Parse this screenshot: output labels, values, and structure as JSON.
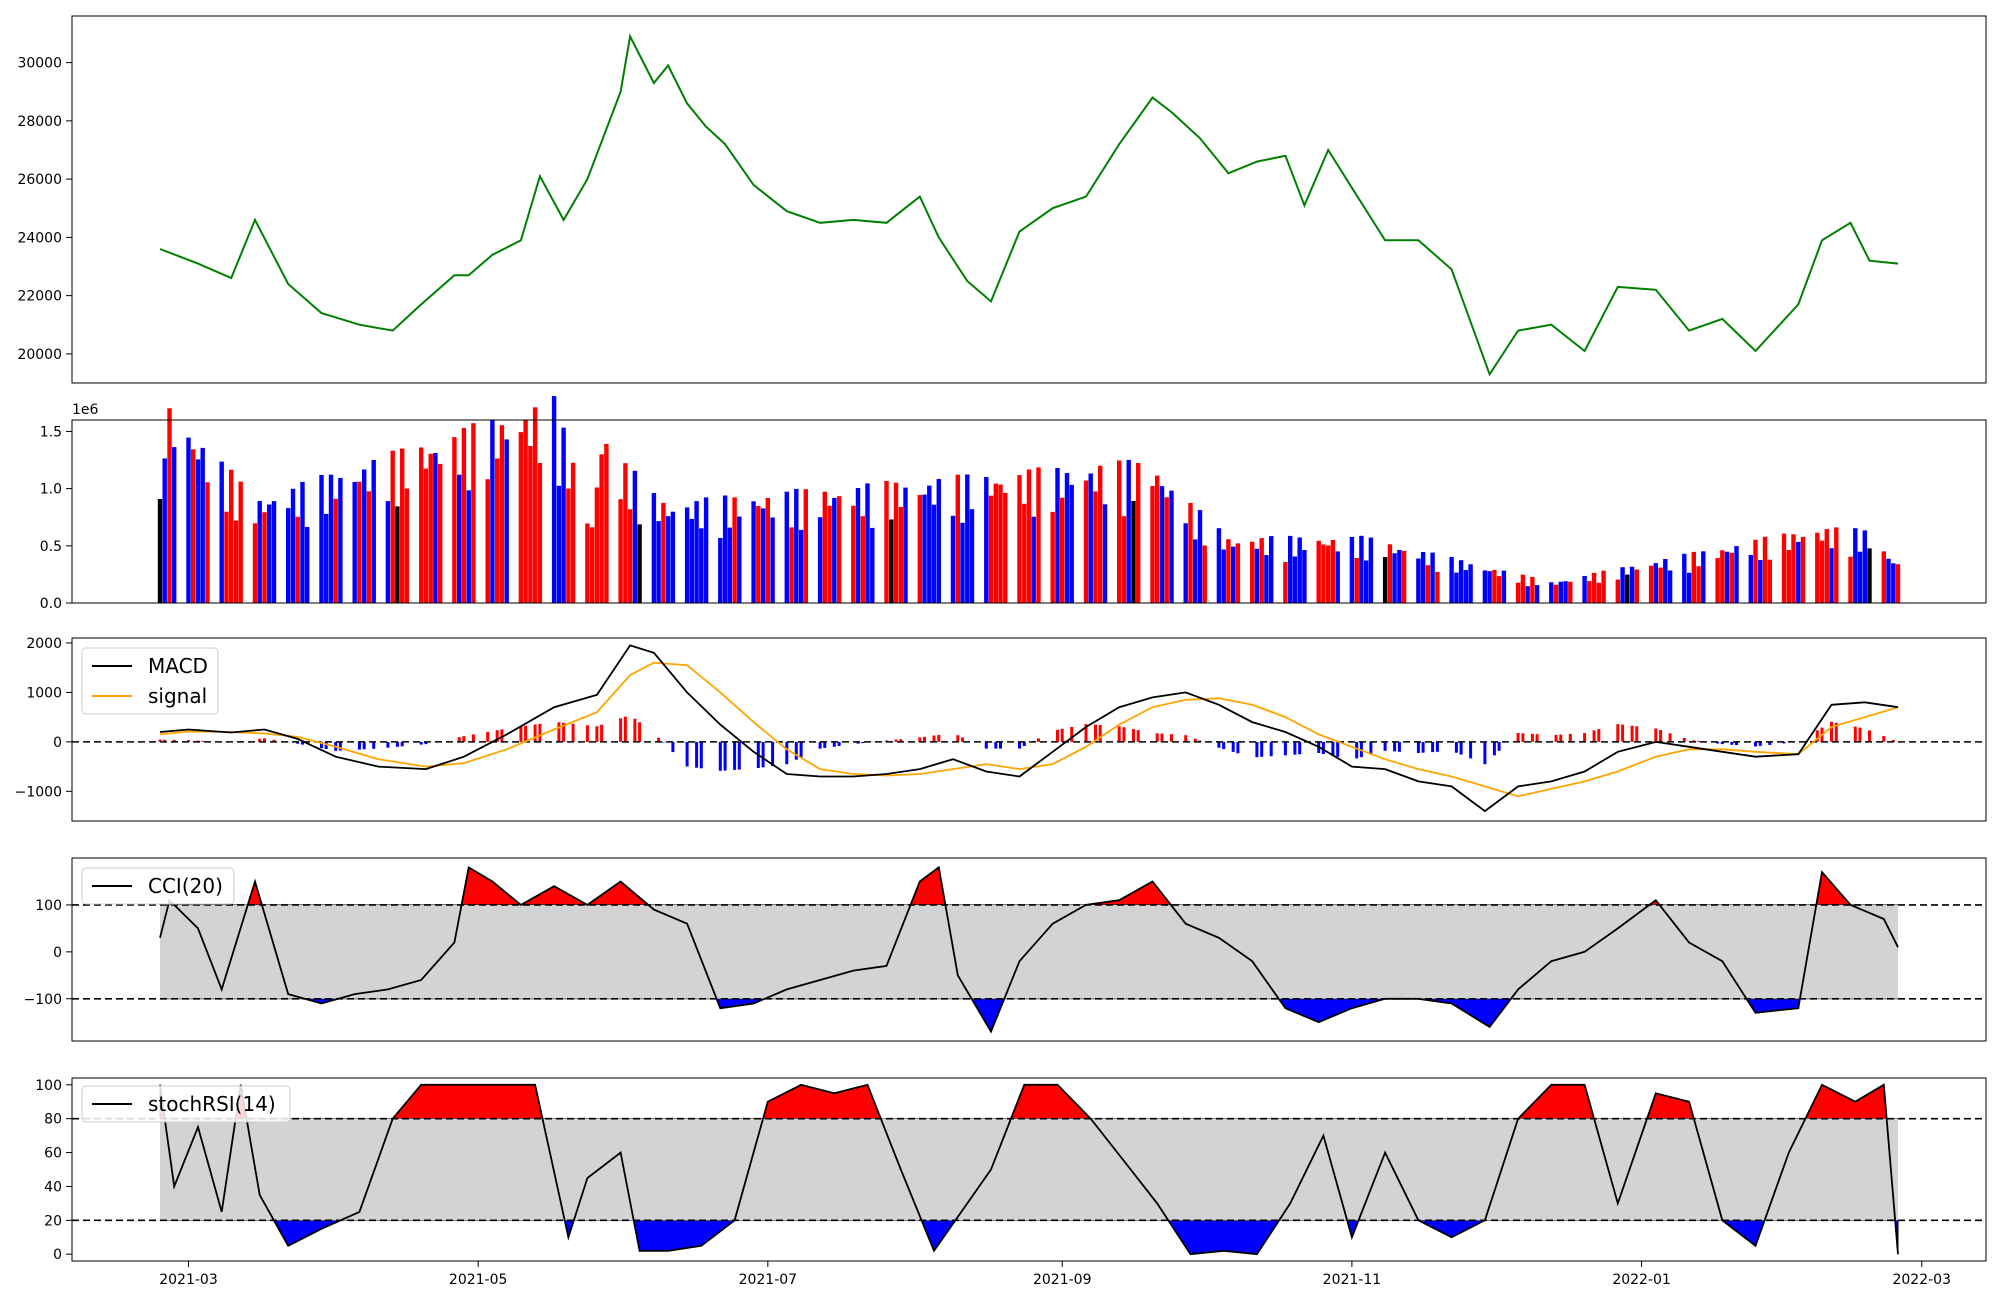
{
  "colors": {
    "price": "#008000",
    "up": "#ff0000",
    "down": "#0000ff",
    "flat": "#000000",
    "macd": "#000000",
    "signal": "#ffa500",
    "band": "#d3d3d3",
    "over": "#ff0000",
    "under": "#0000ff"
  },
  "chart_data": [
    {
      "type": "line",
      "panel": "price",
      "ylim": [
        19000,
        31600
      ],
      "yticks": [
        "20000",
        "22000",
        "24000",
        "26000",
        "28000",
        "30000"
      ],
      "series": [
        {
          "x": [
            "2021-02-23",
            "2021-03-03",
            "2021-03-10",
            "2021-03-15",
            "2021-03-22",
            "2021-03-29",
            "2021-04-06",
            "2021-04-13",
            "2021-04-19",
            "2021-04-26",
            "2021-04-29",
            "2021-05-04",
            "2021-05-10",
            "2021-05-14",
            "2021-05-19",
            "2021-05-24",
            "2021-05-31",
            "2021-06-02",
            "2021-06-07",
            "2021-06-10",
            "2021-06-14",
            "2021-06-18",
            "2021-06-22",
            "2021-06-28",
            "2021-07-05",
            "2021-07-12",
            "2021-07-19",
            "2021-07-26",
            "2021-08-02",
            "2021-08-06",
            "2021-08-12",
            "2021-08-17",
            "2021-08-23",
            "2021-08-30",
            "2021-09-06",
            "2021-09-13",
            "2021-09-20",
            "2021-09-24",
            "2021-09-30",
            "2021-10-06",
            "2021-10-12",
            "2021-10-18",
            "2021-10-22",
            "2021-10-27",
            "2021-11-01",
            "2021-11-08",
            "2021-11-15",
            "2021-11-22",
            "2021-11-30",
            "2021-12-06",
            "2021-12-13",
            "2021-12-20",
            "2021-12-27",
            "2022-01-04",
            "2022-01-11",
            "2022-01-18",
            "2022-01-25",
            "2022-02-03",
            "2022-02-08",
            "2022-02-14",
            "2022-02-18",
            "2022-02-24"
          ],
          "values": [
            23600,
            23100,
            22600,
            24600,
            22400,
            21400,
            21000,
            20800,
            21700,
            22700,
            22700,
            23400,
            23900,
            26100,
            24600,
            26000,
            29000,
            30900,
            29300,
            29900,
            28600,
            27800,
            27200,
            25800,
            24900,
            24500,
            24600,
            24500,
            25400,
            24000,
            22500,
            21800,
            24200,
            25000,
            25400,
            27200,
            28800,
            28300,
            27400,
            26200,
            26600,
            26800,
            25100,
            27000,
            25700,
            23900,
            23900,
            22900,
            19300,
            20800,
            21000,
            20100,
            22300,
            22200,
            20800,
            21200,
            20100,
            21700,
            23900,
            24500,
            23200,
            23100
          ]
        }
      ]
    },
    {
      "type": "bar",
      "panel": "volume",
      "ylim": [
        0,
        1600000
      ],
      "yticks": [
        "0.0",
        "0.5",
        "1.0",
        "1.5"
      ],
      "offset_label": "1e6",
      "series": [
        {
          "x": [
            "2021-02-23",
            "2021-02-24",
            "2021-03-15",
            "2021-03-16",
            "2021-05-17",
            "2021-05-25",
            "2021-05-27",
            "2021-05-31",
            "2021-06-02",
            "2021-06-04",
            "2021-06-10",
            "2021-06-14",
            "2021-09-20",
            "2021-09-24",
            "2021-10-06",
            "2021-11-04",
            "2021-12-13",
            "2022-02-07",
            "2022-02-17",
            "2022-02-24"
          ],
          "values": [
            730000,
            1440000,
            750000,
            750000,
            1450000,
            580000,
            1240000,
            970000,
            1010000,
            840000,
            720000,
            730000,
            1020000,
            830000,
            470000,
            470000,
            150000,
            540000,
            520000,
            290000
          ]
        }
      ]
    },
    {
      "type": "line",
      "panel": "macd",
      "ylim": [
        -1600,
        2100
      ],
      "yticks": [
        "−1000",
        "0",
        "1000",
        "2000"
      ],
      "legend": [
        "MACD",
        "signal"
      ],
      "series": [
        {
          "name": "MACD",
          "x": [
            "2021-02-23",
            "2021-03-01",
            "2021-03-10",
            "2021-03-17",
            "2021-03-24",
            "2021-04-01",
            "2021-04-10",
            "2021-04-20",
            "2021-04-28",
            "2021-05-07",
            "2021-05-17",
            "2021-05-26",
            "2021-06-02",
            "2021-06-07",
            "2021-06-14",
            "2021-06-21",
            "2021-06-28",
            "2021-07-05",
            "2021-07-12",
            "2021-07-19",
            "2021-07-26",
            "2021-08-02",
            "2021-08-09",
            "2021-08-16",
            "2021-08-23",
            "2021-08-30",
            "2021-09-06",
            "2021-09-13",
            "2021-09-20",
            "2021-09-27",
            "2021-10-04",
            "2021-10-11",
            "2021-10-18",
            "2021-10-25",
            "2021-11-01",
            "2021-11-08",
            "2021-11-15",
            "2021-11-22",
            "2021-11-29",
            "2021-12-06",
            "2021-12-13",
            "2021-12-20",
            "2021-12-27",
            "2022-01-04",
            "2022-01-11",
            "2022-01-18",
            "2022-01-25",
            "2022-02-03",
            "2022-02-10",
            "2022-02-17",
            "2022-02-24"
          ],
          "values": [
            200,
            250,
            190,
            250,
            60,
            -300,
            -500,
            -550,
            -300,
            150,
            700,
            950,
            1950,
            1800,
            1000,
            350,
            -200,
            -650,
            -700,
            -700,
            -650,
            -550,
            -350,
            -600,
            -700,
            -200,
            300,
            700,
            900,
            1000,
            750,
            400,
            200,
            -100,
            -500,
            -550,
            -800,
            -900,
            -1400,
            -900,
            -800,
            -600,
            -200,
            0,
            -100,
            -200,
            -300,
            -250,
            750,
            800,
            700
          ]
        },
        {
          "name": "signal",
          "x": [
            "2021-02-23",
            "2021-03-01",
            "2021-03-10",
            "2021-03-17",
            "2021-03-24",
            "2021-04-01",
            "2021-04-10",
            "2021-04-20",
            "2021-04-28",
            "2021-05-07",
            "2021-05-17",
            "2021-05-26",
            "2021-06-02",
            "2021-06-07",
            "2021-06-14",
            "2021-06-21",
            "2021-06-28",
            "2021-07-05",
            "2021-07-12",
            "2021-07-19",
            "2021-07-26",
            "2021-08-02",
            "2021-08-09",
            "2021-08-16",
            "2021-08-23",
            "2021-08-30",
            "2021-09-06",
            "2021-09-13",
            "2021-09-20",
            "2021-09-27",
            "2021-10-04",
            "2021-10-11",
            "2021-10-18",
            "2021-10-25",
            "2021-11-01",
            "2021-11-08",
            "2021-11-15",
            "2021-11-22",
            "2021-11-29",
            "2021-12-06",
            "2021-12-13",
            "2021-12-20",
            "2021-12-27",
            "2022-01-04",
            "2022-01-11",
            "2022-01-18",
            "2022-01-25",
            "2022-02-03",
            "2022-02-10",
            "2022-02-17",
            "2022-02-24"
          ],
          "values": [
            150,
            210,
            200,
            170,
            100,
            -100,
            -350,
            -500,
            -430,
            -150,
            250,
            600,
            1350,
            1600,
            1550,
            1000,
            400,
            -150,
            -550,
            -650,
            -680,
            -650,
            -550,
            -450,
            -550,
            -450,
            -100,
            350,
            700,
            850,
            880,
            750,
            500,
            150,
            -100,
            -350,
            -550,
            -700,
            -900,
            -1100,
            -950,
            -800,
            -600,
            -300,
            -150,
            -150,
            -200,
            -250,
            300,
            500,
            700
          ]
        }
      ]
    },
    {
      "type": "line",
      "panel": "cci",
      "ylim": [
        -190,
        200
      ],
      "yticks": [
        "−100",
        "0",
        "100"
      ],
      "legend": [
        "CCI(20)"
      ],
      "series": [
        {
          "name": "CCI(20)",
          "x": [
            "2021-02-23",
            "2021-02-25",
            "2021-03-03",
            "2021-03-08",
            "2021-03-15",
            "2021-03-22",
            "2021-03-29",
            "2021-04-05",
            "2021-04-12",
            "2021-04-19",
            "2021-04-26",
            "2021-04-29",
            "2021-05-04",
            "2021-05-10",
            "2021-05-17",
            "2021-05-24",
            "2021-05-31",
            "2021-06-07",
            "2021-06-14",
            "2021-06-21",
            "2021-06-28",
            "2021-07-05",
            "2021-07-12",
            "2021-07-19",
            "2021-07-26",
            "2021-08-02",
            "2021-08-06",
            "2021-08-10",
            "2021-08-17",
            "2021-08-23",
            "2021-08-30",
            "2021-09-06",
            "2021-09-13",
            "2021-09-20",
            "2021-09-27",
            "2021-10-04",
            "2021-10-11",
            "2021-10-18",
            "2021-10-25",
            "2021-11-01",
            "2021-11-08",
            "2021-11-15",
            "2021-11-22",
            "2021-11-30",
            "2021-12-06",
            "2021-12-13",
            "2021-12-20",
            "2021-12-27",
            "2022-01-04",
            "2022-01-11",
            "2022-01-18",
            "2022-01-25",
            "2022-02-03",
            "2022-02-08",
            "2022-02-14",
            "2022-02-21",
            "2022-02-24"
          ],
          "values": [
            30,
            110,
            50,
            -80,
            150,
            -90,
            -110,
            -90,
            -80,
            -60,
            20,
            180,
            150,
            100,
            140,
            100,
            150,
            90,
            60,
            -120,
            -110,
            -80,
            -60,
            -40,
            -30,
            150,
            180,
            -50,
            -170,
            -20,
            60,
            100,
            110,
            150,
            60,
            30,
            -20,
            -120,
            -150,
            -120,
            -100,
            -100,
            -110,
            -160,
            -80,
            -20,
            0,
            50,
            110,
            20,
            -20,
            -130,
            -120,
            170,
            100,
            70,
            10
          ]
        }
      ]
    },
    {
      "type": "line",
      "panel": "stochrsi",
      "ylim": [
        -4,
        104
      ],
      "yticks": [
        "0",
        "20",
        "40",
        "60",
        "80",
        "100"
      ],
      "legend": [
        "stochRSI(14)"
      ],
      "series": [
        {
          "name": "stochRSI(14)",
          "x": [
            "2021-02-23",
            "2021-02-26",
            "2021-03-03",
            "2021-03-08",
            "2021-03-12",
            "2021-03-16",
            "2021-03-22",
            "2021-03-29",
            "2021-04-06",
            "2021-04-13",
            "2021-04-19",
            "2021-04-23",
            "2021-04-29",
            "2021-05-06",
            "2021-05-13",
            "2021-05-20",
            "2021-05-24",
            "2021-05-31",
            "2021-06-04",
            "2021-06-10",
            "2021-06-17",
            "2021-06-24",
            "2021-07-01",
            "2021-07-08",
            "2021-07-15",
            "2021-07-22",
            "2021-07-29",
            "2021-08-05",
            "2021-08-12",
            "2021-08-17",
            "2021-08-24",
            "2021-08-31",
            "2021-09-07",
            "2021-09-14",
            "2021-09-21",
            "2021-09-28",
            "2021-10-05",
            "2021-10-12",
            "2021-10-19",
            "2021-10-26",
            "2021-11-01",
            "2021-11-08",
            "2021-11-15",
            "2021-11-22",
            "2021-11-29",
            "2021-12-06",
            "2021-12-13",
            "2021-12-20",
            "2021-12-27",
            "2022-01-04",
            "2022-01-11",
            "2022-01-18",
            "2022-01-25",
            "2022-02-01",
            "2022-02-08",
            "2022-02-15",
            "2022-02-21",
            "2022-02-24"
          ],
          "values": [
            100,
            40,
            75,
            25,
            100,
            35,
            5,
            15,
            25,
            80,
            100,
            100,
            100,
            100,
            100,
            10,
            45,
            60,
            2,
            2,
            5,
            20,
            90,
            100,
            95,
            100,
            50,
            2,
            30,
            50,
            100,
            100,
            80,
            55,
            30,
            0,
            2,
            0,
            30,
            70,
            10,
            60,
            20,
            10,
            20,
            80,
            100,
            100,
            30,
            95,
            90,
            20,
            5,
            60,
            100,
            90,
            100,
            0
          ]
        }
      ]
    }
  ],
  "xaxis": {
    "ticks": [
      "2021-03",
      "2021-05",
      "2021-07",
      "2021-09",
      "2021-11",
      "2022-01",
      "2022-03"
    ]
  }
}
